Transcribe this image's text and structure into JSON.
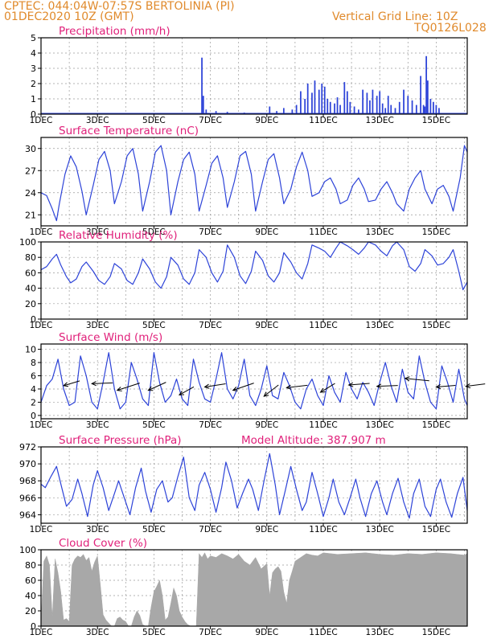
{
  "header": {
    "line1": "CPTEC:   044:04W-07:57S   BERTOLINIA (PI)",
    "line2": "01DEC2020 10Z (GMT)",
    "grid_note": "Vertical Grid Line: 10Z",
    "code": "TQ0126L028"
  },
  "colors": {
    "header": "#e08a2c",
    "title": "#e0207a",
    "line": "#2d43d8",
    "cloud": "#a8a8a8",
    "grid": "#9a9a9a"
  },
  "chart_data": [
    {
      "id": "precip",
      "type": "bar",
      "title": "Precipitation (mm/h)",
      "ylim": [
        0,
        5
      ],
      "yticks": [
        0,
        1,
        2,
        3,
        4,
        5
      ],
      "x_range_days": [
        1,
        16.1
      ],
      "xtick_labels": [
        "1DEC",
        "3DEC",
        "5DEC",
        "7DEC",
        "9DEC",
        "11DEC",
        "13DEC",
        "15DEC"
      ],
      "x": [
        6.7,
        6.75,
        6.85,
        7.2,
        7.6,
        8.2,
        9.1,
        9.35,
        9.6,
        9.9,
        10.05,
        10.2,
        10.35,
        10.45,
        10.6,
        10.7,
        10.85,
        10.95,
        11.05,
        11.15,
        11.25,
        11.4,
        11.5,
        11.6,
        11.75,
        11.85,
        11.95,
        12.1,
        12.25,
        12.4,
        12.55,
        12.65,
        12.75,
        12.9,
        13.0,
        13.1,
        13.2,
        13.3,
        13.4,
        13.55,
        13.7,
        13.85,
        14.0,
        14.15,
        14.3,
        14.45,
        14.55,
        14.6,
        14.65,
        14.7,
        14.8,
        14.9,
        15.0,
        15.1
      ],
      "values": [
        3.7,
        1.2,
        0.3,
        0.2,
        0.15,
        0.1,
        0.5,
        0.2,
        0.4,
        0.3,
        0.6,
        1.5,
        1.0,
        2.0,
        1.4,
        2.2,
        1.6,
        2.0,
        1.8,
        1.0,
        0.8,
        0.7,
        1.1,
        0.6,
        2.1,
        1.5,
        0.8,
        0.5,
        0.3,
        1.6,
        1.4,
        0.9,
        1.6,
        1.2,
        1.5,
        0.7,
        0.4,
        1.2,
        0.6,
        0.4,
        0.8,
        1.6,
        1.2,
        0.9,
        0.6,
        2.5,
        0.6,
        0.5,
        3.8,
        2.2,
        1.0,
        0.8,
        0.6,
        0.4
      ]
    },
    {
      "id": "temp",
      "type": "line",
      "title": "Surface Temperature (nC)",
      "ylim": [
        19.5,
        31.5
      ],
      "yticks": [
        21,
        24,
        27,
        30
      ],
      "x_range_days": [
        1,
        16.1
      ],
      "xtick_labels": [
        "1DEC",
        "3DEC",
        "5DEC",
        "7DEC",
        "9DEC",
        "11DEC",
        "13DEC",
        "15DEC"
      ],
      "x": [
        1.0,
        1.2,
        1.4,
        1.55,
        1.65,
        1.85,
        2.05,
        2.25,
        2.45,
        2.6,
        2.85,
        3.05,
        3.25,
        3.45,
        3.6,
        3.85,
        4.05,
        4.25,
        4.45,
        4.6,
        4.85,
        5.05,
        5.25,
        5.45,
        5.6,
        5.85,
        6.05,
        6.25,
        6.45,
        6.6,
        6.85,
        7.05,
        7.25,
        7.45,
        7.6,
        7.85,
        8.05,
        8.25,
        8.45,
        8.6,
        8.85,
        9.05,
        9.25,
        9.45,
        9.6,
        9.85,
        10.05,
        10.25,
        10.45,
        10.6,
        10.85,
        11.05,
        11.25,
        11.45,
        11.6,
        11.85,
        12.05,
        12.25,
        12.45,
        12.6,
        12.85,
        13.05,
        13.25,
        13.45,
        13.6,
        13.85,
        14.05,
        14.25,
        14.45,
        14.6,
        14.85,
        15.05,
        15.25,
        15.45,
        15.6,
        15.85,
        16.0,
        16.1
      ],
      "values": [
        24.0,
        23.6,
        21.8,
        20.2,
        22.5,
        26.5,
        29.0,
        27.5,
        24.2,
        21.0,
        25.0,
        28.5,
        29.6,
        27.0,
        22.5,
        25.5,
        29.0,
        30.0,
        26.5,
        21.5,
        25.5,
        29.5,
        30.4,
        27.0,
        21.0,
        25.5,
        28.5,
        29.5,
        26.5,
        21.5,
        25.0,
        28.0,
        29.0,
        26.0,
        22.0,
        25.5,
        29.0,
        29.6,
        26.5,
        21.5,
        25.5,
        28.5,
        29.3,
        26.0,
        22.5,
        24.5,
        27.5,
        29.5,
        27.0,
        23.5,
        24.0,
        25.5,
        26.0,
        24.5,
        22.5,
        23.0,
        25.0,
        26.0,
        24.5,
        22.8,
        23.0,
        24.5,
        25.5,
        24.0,
        22.5,
        21.5,
        24.5,
        26.0,
        27.0,
        24.5,
        22.5,
        24.5,
        25.0,
        23.5,
        21.5,
        26.0,
        30.4,
        29.5
      ]
    },
    {
      "id": "rh",
      "type": "line",
      "title": "Relative Humidity (%)",
      "ylim": [
        0,
        100
      ],
      "yticks": [
        0,
        20,
        40,
        60,
        80,
        100
      ],
      "x_range_days": [
        1,
        16.1
      ],
      "xtick_labels": [
        "1DEC",
        "3DEC",
        "5DEC",
        "7DEC",
        "9DEC",
        "11DEC",
        "13DEC",
        "15DEC"
      ],
      "x": [
        1.0,
        1.2,
        1.4,
        1.55,
        1.7,
        1.9,
        2.05,
        2.25,
        2.45,
        2.6,
        2.85,
        3.05,
        3.25,
        3.45,
        3.6,
        3.85,
        4.05,
        4.25,
        4.45,
        4.6,
        4.85,
        5.05,
        5.25,
        5.45,
        5.6,
        5.85,
        6.05,
        6.25,
        6.45,
        6.6,
        6.85,
        7.05,
        7.25,
        7.45,
        7.6,
        7.85,
        8.05,
        8.25,
        8.45,
        8.6,
        8.85,
        9.05,
        9.25,
        9.45,
        9.6,
        9.85,
        10.05,
        10.25,
        10.45,
        10.6,
        10.85,
        11.05,
        11.25,
        11.45,
        11.6,
        11.85,
        12.05,
        12.25,
        12.45,
        12.6,
        12.85,
        13.05,
        13.25,
        13.45,
        13.6,
        13.85,
        14.05,
        14.25,
        14.45,
        14.6,
        14.85,
        15.05,
        15.25,
        15.45,
        15.6,
        15.8,
        15.95,
        16.1
      ],
      "values": [
        64,
        68,
        78,
        84,
        70,
        55,
        47,
        52,
        68,
        74,
        62,
        50,
        45,
        55,
        72,
        65,
        50,
        45,
        60,
        78,
        65,
        48,
        40,
        55,
        80,
        70,
        52,
        45,
        60,
        90,
        80,
        60,
        48,
        62,
        96,
        80,
        56,
        46,
        62,
        88,
        76,
        56,
        48,
        60,
        86,
        74,
        60,
        52,
        72,
        96,
        92,
        88,
        80,
        92,
        100,
        95,
        90,
        84,
        92,
        100,
        96,
        88,
        82,
        95,
        100,
        90,
        68,
        62,
        72,
        90,
        82,
        70,
        72,
        80,
        90,
        62,
        38,
        48
      ]
    },
    {
      "id": "wind",
      "type": "line",
      "title": "Surface Wind (m/s)",
      "ylim": [
        -0.5,
        10.8
      ],
      "yticks": [
        0,
        2,
        4,
        6,
        8,
        10
      ],
      "x_range_days": [
        1,
        16.1
      ],
      "xtick_labels": [
        "1DEC",
        "3DEC",
        "5DEC",
        "7DEC",
        "9DEC",
        "11DEC",
        "13DEC",
        "15DEC"
      ],
      "x": [
        1.0,
        1.2,
        1.4,
        1.6,
        1.8,
        2.0,
        2.2,
        2.4,
        2.6,
        2.8,
        3.0,
        3.2,
        3.4,
        3.6,
        3.8,
        4.0,
        4.2,
        4.4,
        4.6,
        4.8,
        5.0,
        5.2,
        5.4,
        5.6,
        5.8,
        6.0,
        6.2,
        6.4,
        6.6,
        6.8,
        7.0,
        7.2,
        7.4,
        7.6,
        7.8,
        8.0,
        8.2,
        8.4,
        8.6,
        8.8,
        9.0,
        9.2,
        9.4,
        9.6,
        9.8,
        10.0,
        10.2,
        10.4,
        10.6,
        10.8,
        11.0,
        11.2,
        11.4,
        11.6,
        11.8,
        12.0,
        12.2,
        12.4,
        12.6,
        12.8,
        13.0,
        13.2,
        13.4,
        13.6,
        13.8,
        14.0,
        14.2,
        14.4,
        14.6,
        14.8,
        15.0,
        15.2,
        15.4,
        15.6,
        15.8,
        16.0,
        16.1
      ],
      "values": [
        2.0,
        4.5,
        5.5,
        8.5,
        4.0,
        1.5,
        2.0,
        9.0,
        6.0,
        2.0,
        1.0,
        5.0,
        9.5,
        4.0,
        1.0,
        2.0,
        8.0,
        5.5,
        2.5,
        1.5,
        9.5,
        5.0,
        2.0,
        3.0,
        5.5,
        2.5,
        1.5,
        8.5,
        5.0,
        2.5,
        2.0,
        5.5,
        9.5,
        4.0,
        2.5,
        4.5,
        8.5,
        3.0,
        1.5,
        4.0,
        7.5,
        3.0,
        2.5,
        6.5,
        4.5,
        2.0,
        1.0,
        4.0,
        5.5,
        3.0,
        1.5,
        6.0,
        3.5,
        2.0,
        6.5,
        4.0,
        2.5,
        5.0,
        3.5,
        1.5,
        5.0,
        8.0,
        4.5,
        2.0,
        7.0,
        3.5,
        2.5,
        9.0,
        5.0,
        2.0,
        1.0,
        7.5,
        5.0,
        2.0,
        7.0,
        2.5,
        1.5
      ],
      "arrows": [
        {
          "x": 1.8,
          "y": 4.5,
          "dx": 20,
          "dy": -6
        },
        {
          "x": 2.8,
          "y": 4.8,
          "dx": 26,
          "dy": -1
        },
        {
          "x": 3.7,
          "y": 3.8,
          "dx": 28,
          "dy": -9
        },
        {
          "x": 4.8,
          "y": 3.8,
          "dx": 22,
          "dy": -10
        },
        {
          "x": 5.9,
          "y": 3.1,
          "dx": 18,
          "dy": -10
        },
        {
          "x": 6.8,
          "y": 4.3,
          "dx": 26,
          "dy": -4
        },
        {
          "x": 7.8,
          "y": 3.8,
          "dx": 26,
          "dy": -9
        },
        {
          "x": 8.9,
          "y": 2.9,
          "dx": 18,
          "dy": -14
        },
        {
          "x": 9.7,
          "y": 4.2,
          "dx": 26,
          "dy": -3
        },
        {
          "x": 10.9,
          "y": 3.5,
          "dx": 18,
          "dy": -11
        },
        {
          "x": 11.9,
          "y": 4.6,
          "dx": 26,
          "dy": -2
        },
        {
          "x": 12.9,
          "y": 4.4,
          "dx": 26,
          "dy": -1
        },
        {
          "x": 13.9,
          "y": 5.6,
          "dx": 30,
          "dy": 3
        },
        {
          "x": 15.0,
          "y": 4.3,
          "dx": 24,
          "dy": -2
        },
        {
          "x": 16.05,
          "y": 4.4,
          "dx": 24,
          "dy": -3
        }
      ]
    },
    {
      "id": "pressure",
      "type": "line",
      "title": "Surface Pressure (hPa)",
      "extra_label": "Model Altitude: 387.907 m",
      "ylim": [
        963,
        972
      ],
      "yticks": [
        964,
        966,
        968,
        970,
        972
      ],
      "x_range_days": [
        1,
        16.1
      ],
      "xtick_labels": [
        "1DEC",
        "3DEC",
        "5DEC",
        "7DEC",
        "9DEC",
        "11DEC",
        "13DEC",
        "15DEC"
      ],
      "x": [
        1.0,
        1.15,
        1.35,
        1.55,
        1.75,
        1.9,
        2.1,
        2.3,
        2.45,
        2.65,
        2.85,
        3.0,
        3.2,
        3.4,
        3.6,
        3.75,
        3.95,
        4.15,
        4.35,
        4.55,
        4.7,
        4.9,
        5.1,
        5.3,
        5.5,
        5.65,
        5.85,
        6.05,
        6.25,
        6.45,
        6.6,
        6.8,
        7.0,
        7.2,
        7.4,
        7.55,
        7.75,
        7.95,
        8.15,
        8.35,
        8.5,
        8.7,
        8.9,
        9.1,
        9.3,
        9.45,
        9.65,
        9.85,
        10.05,
        10.25,
        10.4,
        10.6,
        10.8,
        11.0,
        11.2,
        11.35,
        11.55,
        11.75,
        11.95,
        12.15,
        12.3,
        12.5,
        12.7,
        12.9,
        13.1,
        13.25,
        13.45,
        13.65,
        13.85,
        14.05,
        14.2,
        14.4,
        14.6,
        14.8,
        15.0,
        15.15,
        15.35,
        15.55,
        15.75,
        15.95,
        16.1
      ],
      "values": [
        967.6,
        967.2,
        968.5,
        969.7,
        967.0,
        965.0,
        965.8,
        968.2,
        966.5,
        963.8,
        967.5,
        969.2,
        967.2,
        964.5,
        966.5,
        968.0,
        966.0,
        964.0,
        967.2,
        969.5,
        966.8,
        964.3,
        967.0,
        968.0,
        965.5,
        966.0,
        968.5,
        970.8,
        966.0,
        964.5,
        967.5,
        969.0,
        967.0,
        964.3,
        967.2,
        970.2,
        968.0,
        964.8,
        966.6,
        968.2,
        967.0,
        964.5,
        968.0,
        971.2,
        967.5,
        964.0,
        966.8,
        969.7,
        967.0,
        964.5,
        965.5,
        969.0,
        966.5,
        963.8,
        966.0,
        968.2,
        965.5,
        964.0,
        966.0,
        968.2,
        966.0,
        963.8,
        966.5,
        968.0,
        965.5,
        964.0,
        966.5,
        968.3,
        965.5,
        963.6,
        966.5,
        968.2,
        965.0,
        963.8,
        967.0,
        968.2,
        965.5,
        963.7,
        966.5,
        968.4,
        964.5
      ]
    },
    {
      "id": "cloud",
      "type": "area",
      "title": "Cloud Cover (%)",
      "ylim": [
        0,
        100
      ],
      "yticks": [
        0,
        20,
        40,
        60,
        80,
        100
      ],
      "x_range_days": [
        1,
        16.1
      ],
      "xtick_labels": [
        "1DEC",
        "3DEC",
        "5DEC",
        "7DEC",
        "9DEC",
        "11DEC",
        "13DEC",
        "15DEC"
      ],
      "x": [
        1.0,
        1.1,
        1.2,
        1.3,
        1.4,
        1.5,
        1.6,
        1.7,
        1.8,
        1.9,
        2.0,
        2.1,
        2.2,
        2.3,
        2.4,
        2.5,
        2.6,
        2.7,
        2.8,
        2.9,
        3.0,
        3.1,
        3.2,
        3.3,
        3.4,
        3.5,
        3.6,
        3.7,
        3.8,
        3.9,
        4.0,
        4.1,
        4.2,
        4.3,
        4.4,
        4.5,
        4.6,
        4.7,
        4.8,
        4.9,
        5.0,
        5.1,
        5.2,
        5.3,
        5.4,
        5.5,
        5.6,
        5.7,
        5.8,
        5.9,
        6.0,
        6.1,
        6.2,
        6.3,
        6.4,
        6.5,
        6.6,
        6.7,
        6.8,
        6.9,
        7.0,
        7.2,
        7.4,
        7.6,
        7.8,
        8.0,
        8.2,
        8.4,
        8.6,
        8.8,
        9.0,
        9.1,
        9.2,
        9.3,
        9.4,
        9.5,
        9.6,
        9.7,
        9.8,
        9.9,
        10.0,
        10.2,
        10.4,
        10.6,
        10.8,
        11.0,
        11.5,
        12.0,
        12.5,
        13.0,
        13.5,
        14.0,
        14.5,
        15.0,
        15.5,
        16.0,
        16.1
      ],
      "values": [
        5,
        85,
        92,
        80,
        12,
        88,
        70,
        45,
        8,
        10,
        6,
        80,
        88,
        92,
        90,
        94,
        86,
        90,
        72,
        84,
        92,
        55,
        15,
        8,
        4,
        0,
        0,
        10,
        12,
        8,
        6,
        0,
        0,
        12,
        20,
        14,
        2,
        0,
        0,
        25,
        45,
        52,
        60,
        40,
        8,
        12,
        30,
        50,
        40,
        20,
        12,
        6,
        2,
        0,
        0,
        0,
        95,
        90,
        96,
        88,
        92,
        90,
        95,
        92,
        88,
        94,
        85,
        80,
        90,
        75,
        82,
        40,
        70,
        75,
        78,
        72,
        45,
        30,
        60,
        72,
        85,
        90,
        95,
        93,
        92,
        96,
        94,
        95,
        96,
        94,
        93,
        95,
        94,
        96,
        95,
        93,
        95
      ]
    }
  ]
}
